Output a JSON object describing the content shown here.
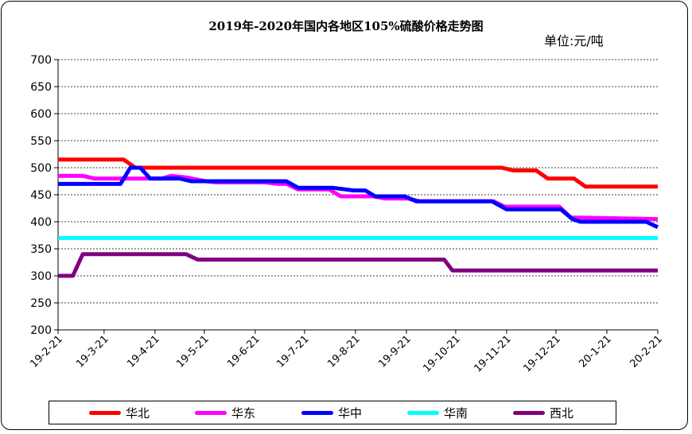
{
  "title": "2019年-2020年国内各地区105%硫酸价格走势图",
  "unit": "单位:元/吨",
  "chart_data": {
    "type": "line",
    "title": "2019年-2020年国内各地区105%硫酸价格走势图",
    "ylim": [
      200,
      700
    ],
    "yticks": [
      200,
      250,
      300,
      350,
      400,
      450,
      500,
      550,
      600,
      650,
      700
    ],
    "xlim": [
      "2019-02-21",
      "2020-02-21"
    ],
    "xticks": [
      "19-2-21",
      "19-3-21",
      "19-4-21",
      "19-5-21",
      "19-6-21",
      "19-7-21",
      "19-8-21",
      "19-9-21",
      "19-10-21",
      "19-11-21",
      "19-12-21",
      "20-1-21",
      "20-2-21"
    ],
    "grid": true,
    "legend": "bottom",
    "series": [
      {
        "name": "华北",
        "color": "#ff0000",
        "points": [
          [
            "2019-02-21",
            515
          ],
          [
            "2019-04-02",
            515
          ],
          [
            "2019-04-09",
            500
          ],
          [
            "2019-11-18",
            500
          ],
          [
            "2019-11-25",
            495
          ],
          [
            "2019-12-09",
            495
          ],
          [
            "2019-12-16",
            480
          ],
          [
            "2020-01-01",
            480
          ],
          [
            "2020-01-08",
            465
          ],
          [
            "2020-02-21",
            465
          ]
        ]
      },
      {
        "name": "华东",
        "color": "#ff00ff",
        "points": [
          [
            "2019-02-21",
            485
          ],
          [
            "2019-03-08",
            485
          ],
          [
            "2019-03-15",
            480
          ],
          [
            "2019-04-25",
            480
          ],
          [
            "2019-05-01",
            485
          ],
          [
            "2019-05-10",
            482
          ],
          [
            "2019-05-22",
            475
          ],
          [
            "2019-05-28",
            473
          ],
          [
            "2019-06-27",
            473
          ],
          [
            "2019-07-05",
            470
          ],
          [
            "2019-07-10",
            470
          ],
          [
            "2019-07-17",
            460
          ],
          [
            "2019-08-05",
            460
          ],
          [
            "2019-08-12",
            447
          ],
          [
            "2019-09-01",
            447
          ],
          [
            "2019-09-08",
            443
          ],
          [
            "2019-09-22",
            443
          ],
          [
            "2019-09-29",
            438
          ],
          [
            "2019-11-13",
            438
          ],
          [
            "2019-11-20",
            428
          ],
          [
            "2019-12-23",
            428
          ],
          [
            "2019-12-30",
            408
          ],
          [
            "2020-02-21",
            405
          ]
        ]
      },
      {
        "name": "华中",
        "color": "#0000ff",
        "points": [
          [
            "2019-02-21",
            470
          ],
          [
            "2019-03-31",
            470
          ],
          [
            "2019-04-06",
            500
          ],
          [
            "2019-04-12",
            500
          ],
          [
            "2019-04-18",
            480
          ],
          [
            "2019-05-06",
            480
          ],
          [
            "2019-05-13",
            475
          ],
          [
            "2019-07-10",
            475
          ],
          [
            "2019-07-17",
            463
          ],
          [
            "2019-08-07",
            463
          ],
          [
            "2019-08-20",
            458
          ],
          [
            "2019-08-27",
            458
          ],
          [
            "2019-09-02",
            447
          ],
          [
            "2019-09-20",
            447
          ],
          [
            "2019-09-27",
            438
          ],
          [
            "2019-11-12",
            438
          ],
          [
            "2019-11-21",
            423
          ],
          [
            "2019-12-24",
            423
          ],
          [
            "2019-12-31",
            405
          ],
          [
            "2020-01-05",
            400
          ],
          [
            "2020-02-14",
            400
          ],
          [
            "2020-02-21",
            390
          ]
        ]
      },
      {
        "name": "华南",
        "color": "#00ffff",
        "points": [
          [
            "2019-02-21",
            370
          ],
          [
            "2020-02-21",
            370
          ]
        ]
      },
      {
        "name": "西北",
        "color": "#800080",
        "points": [
          [
            "2019-02-21",
            300
          ],
          [
            "2019-03-02",
            300
          ],
          [
            "2019-03-08",
            340
          ],
          [
            "2019-05-10",
            340
          ],
          [
            "2019-05-17",
            330
          ],
          [
            "2019-10-14",
            330
          ],
          [
            "2019-10-19",
            310
          ],
          [
            "2020-02-21",
            310
          ]
        ]
      }
    ]
  }
}
